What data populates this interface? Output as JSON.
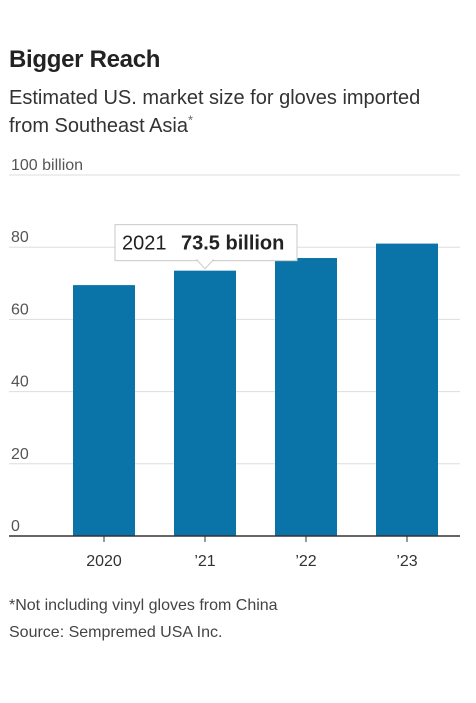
{
  "header": {
    "title": "Bigger Reach",
    "subtitle": "Estimated US. market size for gloves imported from Southeast Asia",
    "subtitle_marker": "*"
  },
  "chart_data": {
    "type": "bar",
    "categories": [
      "2020",
      "’21",
      "’22",
      "’23"
    ],
    "values": [
      69.5,
      73.5,
      77,
      81
    ],
    "ylim": [
      0,
      100
    ],
    "yticks": [
      0,
      20,
      40,
      60,
      80,
      100
    ],
    "ytick_labels": [
      "0",
      "20",
      "40",
      "60",
      "80",
      "100 billion"
    ],
    "grid": true,
    "annotation": {
      "category_index": 1,
      "year": "2021",
      "value_label": "73.5 billion"
    },
    "bar_color": "#0a73a8"
  },
  "footer": {
    "footnote": "*Not including vinyl gloves from China",
    "source": "Source: Sempremed USA Inc."
  }
}
